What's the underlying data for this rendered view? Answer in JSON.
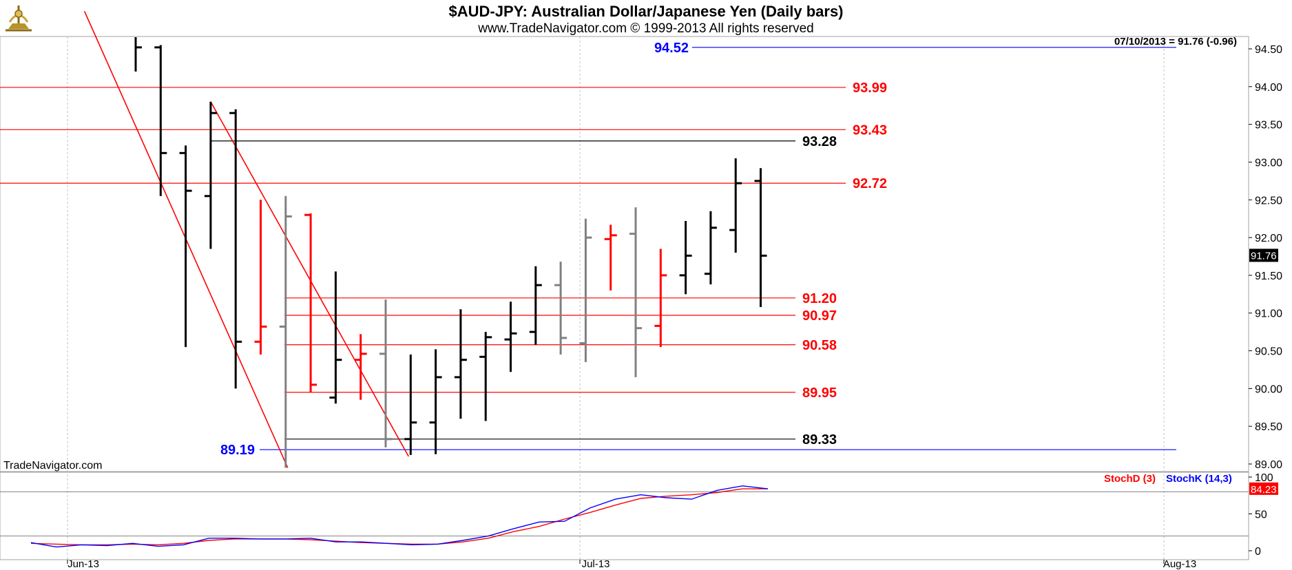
{
  "header": {
    "title": "$AUD-JPY:  Australian Dollar/Japanese Yen  (Daily bars)",
    "copyright": "www.TradeNavigator.com © 1999-2013 All rights reserved",
    "last_value_readout": "07/10/2013 = 91.76 (-0.96)",
    "watermark": "TradeNavigator.com"
  },
  "colors": {
    "up_bar": "#000000",
    "down_bar": "#ff0000",
    "neutral_bar": "#808080",
    "resistance_line": "#ff0000",
    "support_line": "#000000",
    "extreme_line": "#0000ff",
    "stoch_d": "#ff0000",
    "stoch_k": "#0000ff",
    "grid": "#c0c0c0",
    "price_badge": "#000000",
    "stoch_badge": "#ff0000"
  },
  "chart_data": [
    {
      "type": "ohlc",
      "ylim": [
        88.75,
        94.75
      ],
      "y_ticks": [
        "89.00",
        "89.50",
        "90.00",
        "90.50",
        "91.00",
        "91.50",
        "92.00",
        "92.50",
        "93.00",
        "93.50",
        "94.00",
        "94.50"
      ],
      "x_tick_labels": [
        "Jun-13",
        "Jul-13",
        "Aug-13"
      ],
      "last_price_label": "91.76",
      "series": [
        {
          "date": "05/30",
          "open": 94.8,
          "high": 95.1,
          "low": 94.2,
          "close": 94.52,
          "color": "black"
        },
        {
          "date": "05/31",
          "open": 94.52,
          "high": 94.55,
          "low": 92.55,
          "close": 93.12,
          "color": "black"
        },
        {
          "date": "06/03",
          "open": 93.12,
          "high": 93.22,
          "low": 90.55,
          "close": 92.62,
          "color": "black"
        },
        {
          "date": "06/04",
          "open": 92.55,
          "high": 93.8,
          "low": 91.85,
          "close": 93.65,
          "color": "black"
        },
        {
          "date": "06/05",
          "open": 93.65,
          "high": 93.7,
          "low": 90.0,
          "close": 90.62,
          "color": "black"
        },
        {
          "date": "06/06",
          "open": 90.62,
          "high": 92.5,
          "low": 90.45,
          "close": 90.82,
          "color": "red"
        },
        {
          "date": "06/07",
          "open": 90.82,
          "high": 92.55,
          "low": 88.95,
          "close": 92.28,
          "color": "gray"
        },
        {
          "date": "06/10",
          "open": 92.3,
          "high": 92.32,
          "low": 89.95,
          "close": 90.05,
          "color": "red"
        },
        {
          "date": "06/11",
          "open": 89.88,
          "high": 91.55,
          "low": 89.8,
          "close": 90.38,
          "color": "black"
        },
        {
          "date": "06/12",
          "open": 90.38,
          "high": 90.72,
          "low": 89.85,
          "close": 90.46,
          "color": "red"
        },
        {
          "date": "06/13",
          "open": 90.46,
          "high": 91.18,
          "low": 89.22,
          "close": 89.33,
          "color": "gray"
        },
        {
          "date": "06/14",
          "open": 89.33,
          "high": 90.45,
          "low": 89.12,
          "close": 89.55,
          "color": "black"
        },
        {
          "date": "06/17",
          "open": 89.55,
          "high": 90.52,
          "low": 89.13,
          "close": 90.15,
          "color": "black"
        },
        {
          "date": "06/18",
          "open": 90.15,
          "high": 91.05,
          "low": 89.6,
          "close": 90.38,
          "color": "black"
        },
        {
          "date": "06/19",
          "open": 90.42,
          "high": 90.75,
          "low": 89.57,
          "close": 90.68,
          "color": "black"
        },
        {
          "date": "06/20",
          "open": 90.65,
          "high": 91.15,
          "low": 90.22,
          "close": 90.73,
          "color": "black"
        },
        {
          "date": "06/21",
          "open": 90.75,
          "high": 91.62,
          "low": 90.58,
          "close": 91.37,
          "color": "black"
        },
        {
          "date": "06/24",
          "open": 91.37,
          "high": 91.68,
          "low": 90.45,
          "close": 90.67,
          "color": "gray"
        },
        {
          "date": "06/25",
          "open": 90.6,
          "high": 92.25,
          "low": 90.35,
          "close": 92.0,
          "color": "gray"
        },
        {
          "date": "06/26",
          "open": 91.98,
          "high": 92.17,
          "low": 91.3,
          "close": 92.03,
          "color": "red"
        },
        {
          "date": "06/27",
          "open": 92.05,
          "high": 92.4,
          "low": 90.15,
          "close": 90.8,
          "color": "gray"
        },
        {
          "date": "06/28",
          "open": 90.83,
          "high": 91.85,
          "low": 90.55,
          "close": 91.5,
          "color": "red"
        },
        {
          "date": "07/01",
          "open": 91.5,
          "high": 92.22,
          "low": 91.25,
          "close": 91.76,
          "color": "black"
        },
        {
          "date": "07/02",
          "open": 91.52,
          "high": 92.35,
          "low": 91.38,
          "close": 92.13,
          "color": "black"
        },
        {
          "date": "07/03",
          "open": 92.1,
          "high": 93.05,
          "low": 91.8,
          "close": 92.72,
          "color": "black"
        },
        {
          "date": "07/04",
          "open": 92.75,
          "high": 92.92,
          "low": 91.08,
          "close": 91.76,
          "color": "black"
        }
      ],
      "horizontal_levels": [
        {
          "value": 94.52,
          "label": "94.52",
          "color": "blue"
        },
        {
          "value": 93.99,
          "label": "93.99",
          "color": "red"
        },
        {
          "value": 93.43,
          "label": "93.43",
          "color": "red"
        },
        {
          "value": 93.28,
          "label": "93.28",
          "color": "black"
        },
        {
          "value": 92.72,
          "label": "92.72",
          "color": "red"
        },
        {
          "value": 91.2,
          "label": "91.20",
          "color": "red"
        },
        {
          "value": 90.97,
          "label": "90.97",
          "color": "red"
        },
        {
          "value": 90.58,
          "label": "90.58",
          "color": "red"
        },
        {
          "value": 89.95,
          "label": "89.95",
          "color": "red"
        },
        {
          "value": 89.33,
          "label": "89.33",
          "color": "black"
        },
        {
          "value": 89.19,
          "label": "89.19",
          "color": "blue"
        }
      ],
      "trendlines": [
        {
          "from": {
            "date": "05/28",
            "price": 95.0
          },
          "to": {
            "date": "06/07",
            "price": 88.95
          },
          "color": "red"
        },
        {
          "from": {
            "date": "06/04",
            "price": 93.8
          },
          "to": {
            "date": "06/14",
            "price": 89.1
          },
          "color": "red"
        }
      ]
    },
    {
      "type": "line",
      "ylim": [
        0,
        100
      ],
      "y_ticks": [
        "0",
        "50",
        "100"
      ],
      "reference_levels": [
        20,
        80
      ],
      "legend": [
        {
          "name": "StochD (3)",
          "color": "red"
        },
        {
          "name": "StochK (14,3)",
          "color": "blue"
        }
      ],
      "last_value_label": "84.23",
      "series": [
        {
          "name": "StochD (3)",
          "values": [
            10,
            9,
            8,
            8,
            9,
            8,
            10,
            14,
            16,
            16,
            16,
            15,
            13,
            11,
            10,
            9,
            9,
            12,
            17,
            26,
            33,
            43,
            52,
            62,
            71,
            74,
            76,
            79,
            84,
            84
          ]
        },
        {
          "name": "StochK (14,3)",
          "values": [
            11,
            5,
            8,
            7,
            10,
            6,
            8,
            17,
            17,
            16,
            16,
            17,
            12,
            12,
            10,
            8,
            9,
            14,
            20,
            30,
            39,
            40,
            58,
            70,
            76,
            72,
            70,
            82,
            88,
            84
          ]
        }
      ]
    }
  ]
}
